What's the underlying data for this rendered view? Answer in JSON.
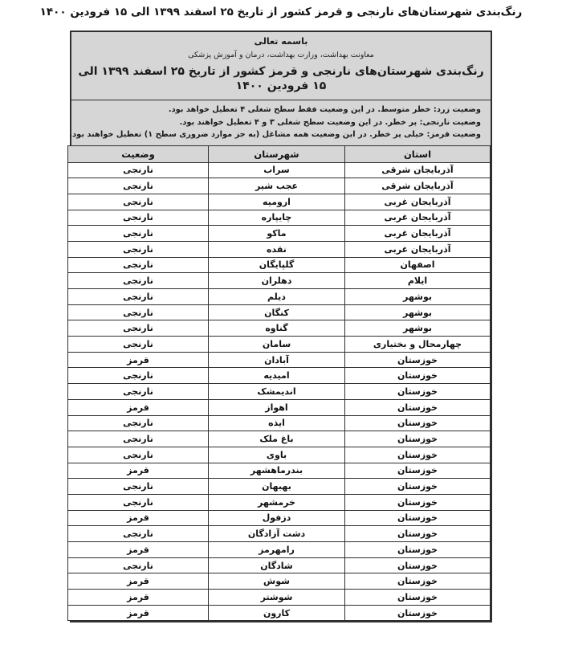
{
  "page_title": "رنگ‌بندی شهرستان‌های نارنجی و قرمز کشور از تاریخ ۲۵ اسفند ۱۳۹۹ الی ۱۵ فرودین ۱۴۰۰",
  "document": {
    "besmele": "باسمه تعالی",
    "department": "معاونت بهداشت، وزارت بهداشت، درمان و آموزش پزشکی",
    "heading": "رنگ‌بندی شهرستان‌های نارنجی و قرمز کشور از تاریخ ۲۵ اسفند ۱۳۹۹ الی ۱۵ فرودین ۱۴۰۰",
    "notes": [
      "وضعیت زرد: خطر متوسط. در این وضعیت فقط سطح شغلی ۴ تعطیل خواهد بود.",
      "وضعیت نارنجی: پر خطر. در این وضعیت سطح شغلی ۳ و ۴ تعطیل خواهند بود.",
      "وضعیت قرمز: خیلی پر خطر. در این وضعیت همه مشاغل (به جز موارد ضروری سطح ۱) تعطیل خواهند بود."
    ]
  },
  "table": {
    "headers": [
      "استان",
      "شهرستان",
      "وضعیت"
    ],
    "rows": [
      [
        "آذربایجان شرقی",
        "سراب",
        "نارنجی"
      ],
      [
        "آذربایجان شرقی",
        "عجب شیر",
        "نارنجی"
      ],
      [
        "آذربایجان غربی",
        "ارومیه",
        "نارنجی"
      ],
      [
        "آذربایجان غربی",
        "چایپاره",
        "نارنجی"
      ],
      [
        "آذربایجان غربی",
        "ماکو",
        "نارنجی"
      ],
      [
        "آذربایجان غربی",
        "نقده",
        "نارنجی"
      ],
      [
        "اصفهان",
        "گلپایگان",
        "نارنجی"
      ],
      [
        "ایلام",
        "دهلران",
        "نارنجی"
      ],
      [
        "بوشهر",
        "دیلم",
        "نارنجی"
      ],
      [
        "بوشهر",
        "کنگان",
        "نارنجی"
      ],
      [
        "بوشهر",
        "گناوه",
        "نارنجی"
      ],
      [
        "چهارمحال و بختیاری",
        "سامان",
        "نارنجی"
      ],
      [
        "خوزستان",
        "آبادان",
        "قرمز"
      ],
      [
        "خوزستان",
        "امیدیه",
        "نارنجی"
      ],
      [
        "خوزستان",
        "اندیمشک",
        "نارنجی"
      ],
      [
        "خوزستان",
        "اهواز",
        "قرمز"
      ],
      [
        "خوزستان",
        "ایذه",
        "نارنجی"
      ],
      [
        "خوزستان",
        "باغ ملک",
        "نارنجی"
      ],
      [
        "خوزستان",
        "باوی",
        "نارنجی"
      ],
      [
        "خوزستان",
        "بندرماهشهر",
        "قرمز"
      ],
      [
        "خوزستان",
        "بهبهان",
        "نارنجی"
      ],
      [
        "خوزستان",
        "خرمشهر",
        "نارنجی"
      ],
      [
        "خوزستان",
        "دزفول",
        "قرمز"
      ],
      [
        "خوزستان",
        "دشت آزادگان",
        "نارنجی"
      ],
      [
        "خوزستان",
        "رامهرمز",
        "قرمز"
      ],
      [
        "خوزستان",
        "شادگان",
        "نارنجی"
      ],
      [
        "خوزستان",
        "شوش",
        "قرمز"
      ],
      [
        "خوزستان",
        "شوشتر",
        "قرمز"
      ],
      [
        "خوزستان",
        "کارون",
        "قرمز"
      ]
    ]
  },
  "colors": {
    "panel_bg": "#d6d6d6",
    "border": "#2e2e2e",
    "text": "#1a1a1a",
    "page_bg": "#ffffff"
  }
}
